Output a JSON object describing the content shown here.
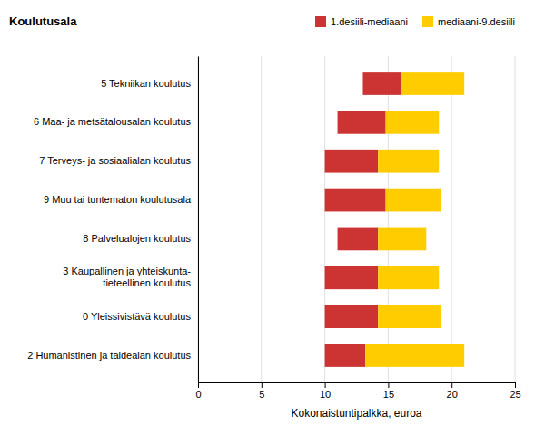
{
  "chart_data": {
    "type": "bar",
    "orientation": "horizontal",
    "ylabel": "Koulutusala",
    "xlabel": "Kokonaistuntipalkka, euroa",
    "categories": [
      "2 Humanistinen ja taidealan koulutus",
      "0 Yleissivistävä koulutus",
      "3 Kaupallinen ja yhteiskunta-\n    tieteellinen koulutus",
      "8 Palvelualojen koulutus",
      "9 Muu tai tuntematon koulutusala",
      "7 Terveys- ja sosiaalialan koulutus",
      "6 Maa- ja metsätalousalan koulutus",
      "5 Tekniikan koulutus"
    ],
    "series": [
      {
        "name": "1.desiili-mediaani",
        "color": "#cc3333",
        "low": [
          10.0,
          10.0,
          10.0,
          11.0,
          10.0,
          10.0,
          11.0,
          13.0
        ],
        "values": [
          13.2,
          14.2,
          14.2,
          14.2,
          14.8,
          14.2,
          14.8,
          16.0
        ]
      },
      {
        "name": "mediaani-9.desiili",
        "color": "#ffcc00",
        "low": [
          13.2,
          14.2,
          14.2,
          14.2,
          14.8,
          14.2,
          14.8,
          16.0
        ],
        "values": [
          21.0,
          19.2,
          19.0,
          18.0,
          19.2,
          19.0,
          19.0,
          21.0
        ]
      }
    ],
    "xlim": [
      0,
      25
    ],
    "xticks": [
      0,
      5,
      10,
      15,
      20,
      25
    ],
    "grid": true,
    "legend": "upper right"
  }
}
